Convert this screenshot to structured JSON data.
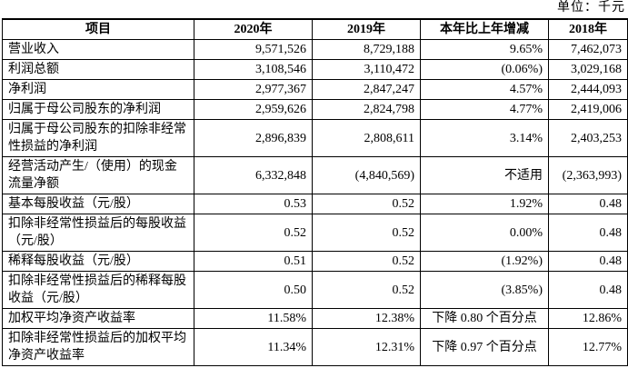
{
  "unit_label": "单位：千元",
  "table": {
    "headers": [
      "项目",
      "2020年",
      "2019年",
      "本年比上年增减",
      "2018年"
    ],
    "rows": [
      {
        "item": "营业收入",
        "y2020": "9,571,526",
        "y2019": "8,729,188",
        "change": "9.65%",
        "y2018": "7,462,073"
      },
      {
        "item": "利润总额",
        "y2020": "3,108,546",
        "y2019": "3,110,472",
        "change": "(0.06%)",
        "y2018": "3,029,168"
      },
      {
        "item": "净利润",
        "y2020": "2,977,367",
        "y2019": "2,847,247",
        "change": "4.57%",
        "y2018": "2,444,093"
      },
      {
        "item": "归属于母公司股东的净利润",
        "y2020": "2,959,626",
        "y2019": "2,824,798",
        "change": "4.77%",
        "y2018": "2,419,006"
      },
      {
        "item": "归属于母公司股东的扣除非经常性损益的净利润",
        "y2020": "2,896,839",
        "y2019": "2,808,611",
        "change": "3.14%",
        "y2018": "2,403,253"
      },
      {
        "item": "经营活动产生/（使用）的现金流量净额",
        "y2020": "6,332,848",
        "y2019": "(4,840,569)",
        "change": "不适用",
        "y2018": "(2,363,993)"
      },
      {
        "item": "基本每股收益（元/股）",
        "y2020": "0.53",
        "y2019": "0.52",
        "change": "1.92%",
        "y2018": "0.48"
      },
      {
        "item": "扣除非经常性损益后的每股收益（元/股）",
        "y2020": "0.52",
        "y2019": "0.52",
        "change": "0.00%",
        "y2018": "0.48"
      },
      {
        "item": "稀释每股收益（元/股）",
        "y2020": "0.51",
        "y2019": "0.52",
        "change": "(1.92%)",
        "y2018": "0.48"
      },
      {
        "item": "扣除非经常性损益后的稀释每股收益（元/股）",
        "y2020": "0.50",
        "y2019": "0.52",
        "change": "(3.85%)",
        "y2018": "0.48"
      },
      {
        "item": "加权平均净资产收益率",
        "y2020": "11.58%",
        "y2019": "12.38%",
        "change": "下降 0.80 个百分点",
        "y2018": "12.86%"
      },
      {
        "item": "扣除非经常性损益后的加权平均净资产收益率",
        "y2020": "11.34%",
        "y2019": "12.31%",
        "change": "下降 0.97 个百分点",
        "y2018": "12.77%"
      }
    ]
  }
}
